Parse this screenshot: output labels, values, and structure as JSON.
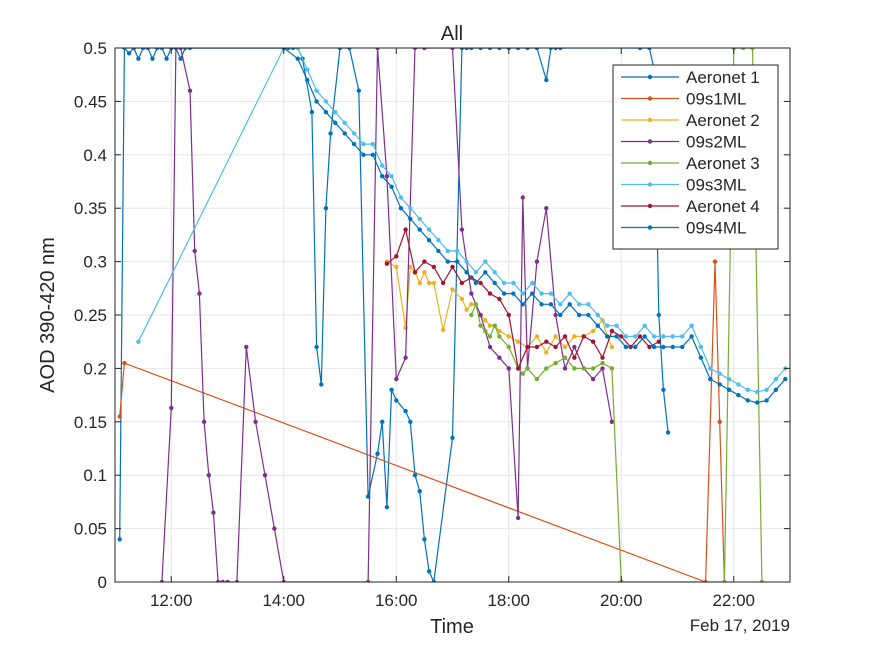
{
  "chart_data": {
    "type": "line",
    "title": "All",
    "xlabel": "Time",
    "ylabel": "AOD 390-420 nm",
    "date_label": "Feb 17, 2019",
    "xlim": [
      "11:00",
      "23:00"
    ],
    "ylim": [
      0,
      0.5
    ],
    "x_ticks": [
      "12:00",
      "14:00",
      "16:00",
      "18:00",
      "20:00",
      "22:00"
    ],
    "y_ticks": [
      "0",
      "0.05",
      "0.1",
      "0.15",
      "0.2",
      "0.25",
      "0.3",
      "0.35",
      "0.4",
      "0.45",
      "0.5"
    ],
    "grid": true,
    "legend_position": "top-right",
    "series": [
      {
        "name": "Aeronet 1",
        "color": "#0072bd",
        "x": [
          "11:05",
          "11:10",
          "11:15",
          "11:20",
          "11:25",
          "11:30",
          "11:35",
          "11:40",
          "11:45",
          "11:50",
          "11:55",
          "12:00",
          "12:05",
          "12:10",
          "12:15",
          "12:20",
          "14:05",
          "14:10",
          "14:15",
          "14:20",
          "14:30",
          "14:35",
          "14:40",
          "14:45",
          "14:50",
          "15:00",
          "15:10",
          "15:20",
          "15:30",
          "15:40",
          "15:45",
          "15:50",
          "15:55",
          "16:00",
          "16:10",
          "16:15",
          "16:20",
          "16:25",
          "16:30",
          "16:35",
          "16:40",
          "17:00",
          "17:10",
          "17:15",
          "17:20",
          "17:30",
          "17:40",
          "17:50",
          "18:00",
          "18:10",
          "18:20",
          "18:30",
          "18:40",
          "18:45",
          "18:50",
          "18:55",
          "20:20",
          "20:30",
          "20:35",
          "20:40",
          "20:45",
          "20:50"
        ],
        "y": [
          0.04,
          0.5,
          0.495,
          0.5,
          0.49,
          0.5,
          0.5,
          0.49,
          0.5,
          0.5,
          0.49,
          0.5,
          0.5,
          0.49,
          0.5,
          0.5,
          0.5,
          0.5,
          0.5,
          0.49,
          0.44,
          0.22,
          0.185,
          0.35,
          0.42,
          0.5,
          0.5,
          0.46,
          0.08,
          0.12,
          0.15,
          0.07,
          0.18,
          0.17,
          0.16,
          0.15,
          0.1,
          0.085,
          0.04,
          0.01,
          0.0,
          0.135,
          0.5,
          0.5,
          0.5,
          0.5,
          0.5,
          0.5,
          0.5,
          0.5,
          0.5,
          0.5,
          0.47,
          0.5,
          0.5,
          0.5,
          0.5,
          0.5,
          0.48,
          0.25,
          0.18,
          0.14
        ]
      },
      {
        "name": "09s1ML",
        "color": "#d95319",
        "x": [
          "11:05",
          "11:10",
          "21:30",
          "21:40",
          "21:45",
          "21:50"
        ],
        "y": [
          0.155,
          0.205,
          0.0,
          0.3,
          0.15,
          0.0
        ]
      },
      {
        "name": "Aeronet 2",
        "color": "#edb120",
        "x": [
          "15:50",
          "16:00",
          "16:10",
          "16:15",
          "16:20",
          "16:25",
          "16:30",
          "16:35",
          "16:40",
          "16:50",
          "17:00",
          "17:10",
          "17:15",
          "17:20",
          "17:25",
          "17:30",
          "17:35",
          "17:40",
          "17:45",
          "17:50",
          "18:00",
          "18:10",
          "18:20",
          "18:30",
          "18:40",
          "18:50",
          "19:00",
          "19:10",
          "19:20",
          "19:30",
          "19:40",
          "19:45",
          "19:50"
        ],
        "y": [
          0.3,
          0.295,
          0.238,
          0.295,
          0.29,
          0.28,
          0.29,
          0.28,
          0.28,
          0.236,
          0.274,
          0.265,
          0.255,
          0.26,
          0.26,
          0.25,
          0.245,
          0.24,
          0.24,
          0.235,
          0.23,
          0.225,
          0.22,
          0.23,
          0.215,
          0.23,
          0.22,
          0.23,
          0.23,
          0.235,
          0.245,
          0.23,
          0.22
        ]
      },
      {
        "name": "09s2ML",
        "color": "#7e2f8e",
        "x": [
          "11:50",
          "12:00",
          "12:05",
          "12:10",
          "12:20",
          "12:25",
          "12:30",
          "12:35",
          "12:40",
          "12:45",
          "12:50",
          "12:55",
          "13:00",
          "13:10",
          "13:20",
          "13:30",
          "13:40",
          "13:50",
          "14:00",
          "15:30",
          "15:40",
          "15:50",
          "16:00",
          "16:10",
          "16:20",
          "16:30",
          "17:00",
          "17:10",
          "17:20",
          "17:30",
          "17:40",
          "17:50",
          "18:00",
          "18:10",
          "18:15",
          "18:20",
          "18:30",
          "18:40",
          "18:50",
          "19:00",
          "19:10",
          "19:20",
          "19:30",
          "19:40",
          "19:50"
        ],
        "y": [
          0.0,
          0.163,
          0.5,
          0.5,
          0.46,
          0.31,
          0.27,
          0.15,
          0.1,
          0.065,
          0.0,
          0.0,
          0.0,
          0.0,
          0.22,
          0.15,
          0.1,
          0.05,
          0.0,
          0.0,
          0.5,
          0.38,
          0.19,
          0.21,
          0.5,
          0.5,
          0.5,
          0.33,
          0.27,
          0.25,
          0.22,
          0.21,
          0.2,
          0.06,
          0.36,
          0.2,
          0.3,
          0.35,
          0.25,
          0.2,
          0.22,
          0.2,
          0.19,
          0.2,
          0.15
        ]
      },
      {
        "name": "Aeronet 3",
        "color": "#77ac30",
        "x": [
          "17:20",
          "17:25",
          "17:30",
          "17:35",
          "17:40",
          "17:45",
          "17:50",
          "18:00",
          "18:10",
          "18:15",
          "18:20",
          "18:30",
          "18:40",
          "18:50",
          "19:00",
          "19:10",
          "19:20",
          "19:30",
          "19:40",
          "19:50",
          "20:00",
          "21:50",
          "22:00",
          "22:10",
          "22:20",
          "22:30"
        ],
        "y": [
          0.25,
          0.26,
          0.24,
          0.235,
          0.23,
          0.24,
          0.23,
          0.22,
          0.2,
          0.195,
          0.2,
          0.19,
          0.2,
          0.205,
          0.21,
          0.2,
          0.2,
          0.2,
          0.205,
          0.2,
          0.0,
          0.0,
          0.5,
          0.5,
          0.5,
          0.0
        ]
      },
      {
        "name": "09s3ML",
        "color": "#4dbeee",
        "x": [
          "11:25",
          "14:00",
          "14:15",
          "14:25",
          "14:35",
          "14:45",
          "14:55",
          "15:05",
          "15:15",
          "15:25",
          "15:35",
          "15:45",
          "15:55",
          "16:05",
          "16:15",
          "16:25",
          "16:35",
          "16:45",
          "16:55",
          "17:05",
          "17:15",
          "17:25",
          "17:35",
          "17:45",
          "17:55",
          "18:05",
          "18:15",
          "18:25",
          "18:35",
          "18:45",
          "18:55",
          "19:05",
          "19:15",
          "19:25",
          "19:35",
          "19:45",
          "19:55",
          "20:05",
          "20:15",
          "20:25",
          "20:35",
          "20:45",
          "20:55",
          "21:05",
          "21:15",
          "21:25",
          "21:35",
          "21:45",
          "21:55",
          "22:05",
          "22:15",
          "22:25",
          "22:35",
          "22:45",
          "22:55"
        ],
        "y": [
          0.225,
          0.5,
          0.5,
          0.48,
          0.46,
          0.45,
          0.44,
          0.43,
          0.42,
          0.41,
          0.41,
          0.39,
          0.38,
          0.36,
          0.35,
          0.34,
          0.33,
          0.32,
          0.31,
          0.31,
          0.3,
          0.29,
          0.3,
          0.29,
          0.28,
          0.28,
          0.27,
          0.28,
          0.27,
          0.27,
          0.26,
          0.27,
          0.26,
          0.26,
          0.25,
          0.24,
          0.24,
          0.23,
          0.23,
          0.24,
          0.23,
          0.23,
          0.23,
          0.23,
          0.24,
          0.22,
          0.2,
          0.195,
          0.19,
          0.185,
          0.18,
          0.178,
          0.18,
          0.19,
          0.2
        ]
      },
      {
        "name": "Aeronet 4",
        "color": "#a2142f",
        "x": [
          "15:50",
          "16:00",
          "16:10",
          "16:20",
          "16:30",
          "16:40",
          "16:50",
          "17:00",
          "17:10",
          "17:20",
          "17:30",
          "17:40",
          "17:50",
          "18:00",
          "18:10",
          "18:20",
          "18:30",
          "18:40",
          "18:50",
          "19:00",
          "19:10",
          "19:20",
          "19:30",
          "19:40",
          "19:50",
          "20:00",
          "20:10",
          "20:20",
          "20:30",
          "20:40"
        ],
        "y": [
          0.298,
          0.305,
          0.33,
          0.29,
          0.3,
          0.295,
          0.28,
          0.295,
          0.28,
          0.285,
          0.28,
          0.27,
          0.265,
          0.25,
          0.2,
          0.22,
          0.22,
          0.225,
          0.22,
          0.23,
          0.21,
          0.23,
          0.225,
          0.21,
          0.235,
          0.23,
          0.22,
          0.23,
          0.22,
          0.225
        ]
      },
      {
        "name": "09s4ML",
        "color": "#0072bd",
        "x": [
          "11:20",
          "14:00",
          "14:15",
          "14:25",
          "14:35",
          "14:45",
          "14:55",
          "15:05",
          "15:15",
          "15:25",
          "15:35",
          "15:45",
          "15:55",
          "16:05",
          "16:15",
          "16:25",
          "16:35",
          "16:45",
          "16:55",
          "17:05",
          "17:15",
          "17:25",
          "17:35",
          "17:45",
          "17:55",
          "18:05",
          "18:15",
          "18:25",
          "18:35",
          "18:45",
          "18:55",
          "19:05",
          "19:15",
          "19:25",
          "19:35",
          "19:45",
          "19:55",
          "20:05",
          "20:15",
          "20:25",
          "20:35",
          "20:45",
          "20:55",
          "21:05",
          "21:15",
          "21:25",
          "21:35",
          "21:45",
          "21:55",
          "22:05",
          "22:15",
          "22:25",
          "22:35",
          "22:45",
          "22:55"
        ],
        "y": [
          0.5,
          0.5,
          0.49,
          0.47,
          0.45,
          0.44,
          0.43,
          0.42,
          0.41,
          0.4,
          0.4,
          0.38,
          0.37,
          0.35,
          0.34,
          0.33,
          0.32,
          0.31,
          0.3,
          0.3,
          0.29,
          0.28,
          0.29,
          0.28,
          0.27,
          0.27,
          0.26,
          0.27,
          0.26,
          0.26,
          0.25,
          0.26,
          0.25,
          0.25,
          0.24,
          0.23,
          0.23,
          0.22,
          0.22,
          0.23,
          0.22,
          0.22,
          0.22,
          0.22,
          0.23,
          0.21,
          0.19,
          0.185,
          0.18,
          0.175,
          0.17,
          0.168,
          0.17,
          0.18,
          0.19
        ]
      }
    ]
  }
}
